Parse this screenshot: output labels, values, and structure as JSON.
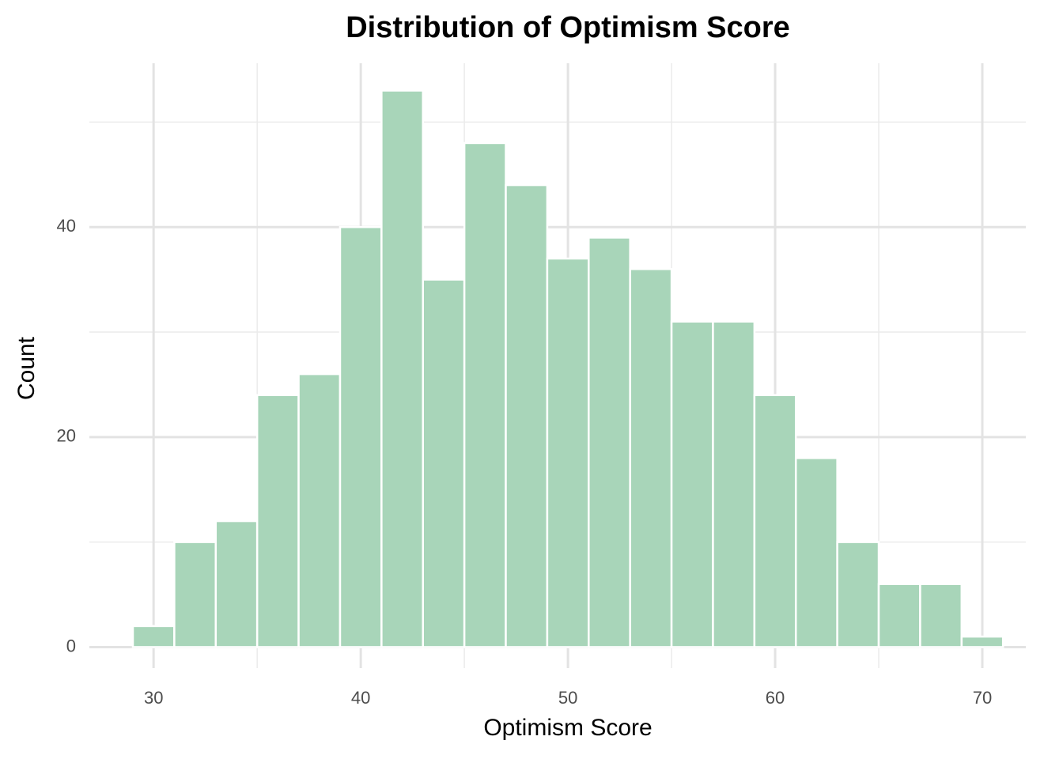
{
  "chart_data": {
    "type": "histogram",
    "title": "Distribution of Optimism Score",
    "x_label": "Optimism Score",
    "y_label": "Count",
    "bins": [
      29,
      31,
      33,
      35,
      37,
      39,
      41,
      43,
      45,
      47,
      49,
      51,
      53,
      55,
      57,
      59,
      61,
      63,
      65,
      67,
      69,
      71
    ],
    "values": [
      2,
      10,
      12,
      24,
      26,
      40,
      53,
      35,
      48,
      44,
      37,
      39,
      36,
      31,
      31,
      24,
      18,
      10,
      6,
      6,
      1
    ],
    "color": "#a8d5b9",
    "edge_color": "#ffffff",
    "xlim": [
      26.9,
      72.1
    ],
    "ylim": [
      -2.0,
      55.6
    ],
    "xticks": [
      30,
      40,
      50,
      60,
      70
    ],
    "yticks": [
      0,
      20,
      40
    ],
    "xminorticks": [
      35,
      45,
      55,
      65
    ],
    "yminorticks": [
      10,
      30,
      50
    ],
    "grid": true
  }
}
